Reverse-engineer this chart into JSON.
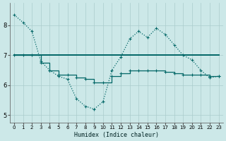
{
  "xlabel": "Humidex (Indice chaleur)",
  "bg_color": "#cce8e8",
  "grid_color": "#aacccc",
  "line_color": "#006666",
  "xlim": [
    -0.5,
    23.5
  ],
  "ylim": [
    4.75,
    8.75
  ],
  "yticks": [
    5,
    6,
    7,
    8
  ],
  "xticks": [
    0,
    1,
    2,
    3,
    4,
    5,
    6,
    7,
    8,
    9,
    10,
    11,
    12,
    13,
    14,
    15,
    16,
    17,
    18,
    19,
    20,
    21,
    22,
    23
  ],
  "line1_x": [
    0,
    1,
    2,
    3,
    4,
    5,
    6,
    7,
    8,
    9,
    10,
    11,
    12,
    13,
    14,
    15,
    16,
    17,
    18,
    19,
    20,
    21,
    22,
    23
  ],
  "line1_y": [
    8.35,
    8.1,
    7.8,
    6.8,
    6.5,
    6.3,
    6.2,
    5.55,
    5.3,
    5.2,
    5.45,
    6.5,
    6.95,
    7.55,
    7.8,
    7.6,
    7.9,
    7.7,
    7.35,
    7.0,
    6.85,
    6.5,
    6.25,
    6.3
  ],
  "line2_x": [
    0,
    23
  ],
  "line2_y": [
    7.0,
    7.0
  ],
  "line3_x": [
    0,
    1,
    2,
    3,
    4,
    5,
    6,
    7,
    8,
    9,
    10,
    11,
    12,
    13,
    14,
    15,
    16,
    17,
    18,
    19,
    20,
    21,
    22,
    23
  ],
  "line3_y": [
    7.0,
    7.0,
    7.0,
    6.75,
    6.5,
    6.35,
    6.35,
    6.25,
    6.2,
    6.1,
    6.1,
    6.3,
    6.4,
    6.5,
    6.5,
    6.5,
    6.5,
    6.45,
    6.4,
    6.35,
    6.35,
    6.35,
    6.3,
    6.3
  ]
}
